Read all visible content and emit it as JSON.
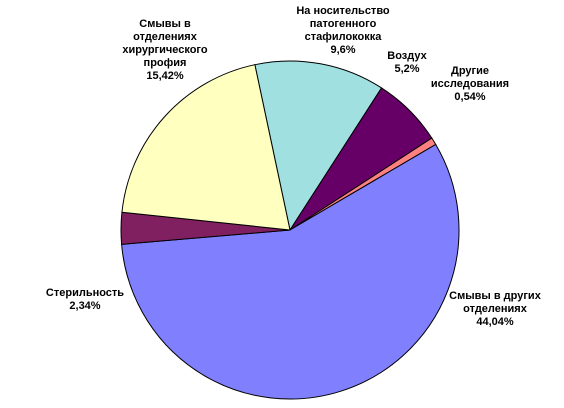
{
  "chart_data": {
    "type": "pie",
    "categories": [
      "На носительство\nпатогенного\nстафилококка",
      "Воздух",
      "Другие\nисследования",
      "Смывы в других\nотделениях",
      "Стерильность",
      "Смывы в\nотделениях\nхирургического\nпрофия"
    ],
    "values": [
      9.6,
      5.2,
      0.54,
      44.04,
      2.34,
      15.42
    ],
    "value_labels": [
      "9,6%",
      "5,2%",
      "0,54%",
      "44,04%",
      "2,34%",
      "15,42%"
    ],
    "colors": [
      "#a0e0e0",
      "#660066",
      "#ff8080",
      "#8080ff",
      "#802060",
      "#ffffc0"
    ]
  }
}
